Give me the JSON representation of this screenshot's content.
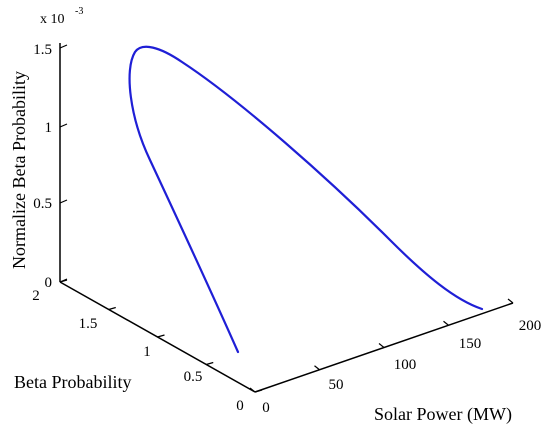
{
  "chart_data": {
    "type": "line",
    "projection": "3d",
    "title": "",
    "xlabel": "Solar Power (MW)",
    "ylabel": "Beta Probability",
    "zlabel": "Normalize Beta Probability",
    "z_exponent_base": "x 10",
    "z_exponent_power": "-3",
    "xlim": [
      0,
      200
    ],
    "ylim": [
      0,
      2
    ],
    "zlim": [
      0,
      0.0015
    ],
    "xticks": [
      0,
      50,
      100,
      150,
      200
    ],
    "yticks": [
      0,
      0.5,
      1,
      1.5,
      2
    ],
    "zticks": [
      0,
      0.5,
      1,
      1.5
    ],
    "xtick_labels": [
      "0",
      "50",
      "100",
      "150",
      "200"
    ],
    "ytick_labels": [
      "0",
      "0.5",
      "1",
      "1.5",
      "2"
    ],
    "ztick_labels": [
      "0",
      "0.5",
      "1",
      "1.5"
    ],
    "grid": false,
    "series": [
      {
        "color": "#1f1fd6",
        "description_points": [
          {
            "x": 2,
            "y": 1.2,
            "z": 0.0
          },
          {
            "x": 20,
            "y": 1.55,
            "z": 0.0013
          },
          {
            "x": 40,
            "y": 1.3,
            "z": 0.00149
          },
          {
            "x": 80,
            "y": 1.0,
            "z": 0.0012
          },
          {
            "x": 120,
            "y": 0.6,
            "z": 0.0007
          },
          {
            "x": 160,
            "y": 0.3,
            "z": 0.0003
          },
          {
            "x": 185,
            "y": 0.1,
            "z": 0.0
          }
        ]
      }
    ]
  },
  "colors": {
    "series": "#1f1fd6",
    "axis": "#000000"
  }
}
